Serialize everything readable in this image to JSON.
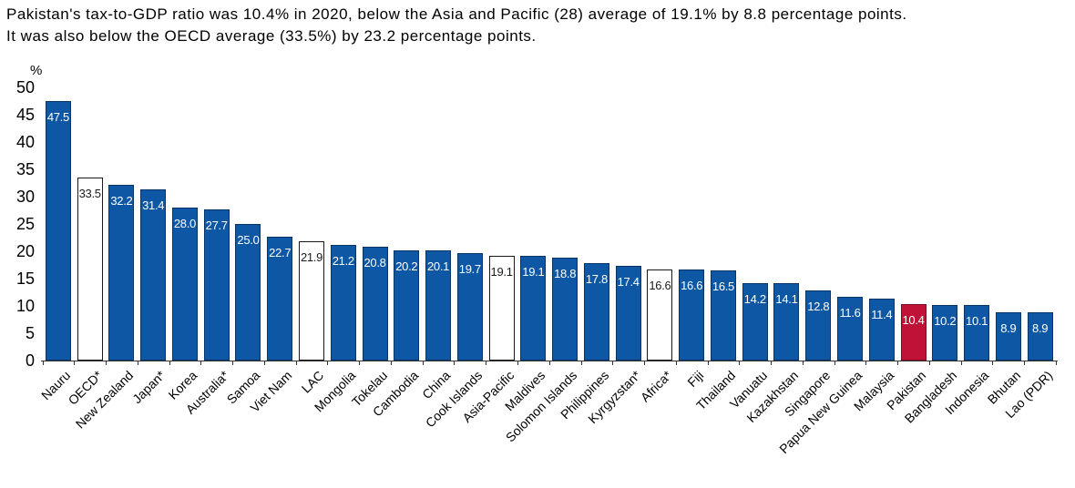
{
  "title": {
    "line1": "Pakistan's tax-to-GDP ratio was 10.4% in 2020, below the Asia and Pacific (28) average of 19.1% by 8.8 percentage points.",
    "line2": "It was also below the OECD average (33.5%) by 23.2 percentage points."
  },
  "chart_data": {
    "type": "bar",
    "ylabel": "%",
    "ylim": [
      0,
      50
    ],
    "yticks": [
      0,
      5,
      10,
      15,
      20,
      25,
      30,
      35,
      40,
      45,
      50
    ],
    "grid": false,
    "value_labels": "inside-top-one-decimal",
    "legend": "none",
    "categories": [
      "Nauru",
      "OECD*",
      "New Zealand",
      "Japan*",
      "Korea",
      "Australia*",
      "Samoa",
      "Viet Nam",
      "LAC",
      "Mongolia",
      "Tokelau",
      "Cambodia",
      "China",
      "Cook Islands",
      "Asia-Pacific",
      "Maldives",
      "Solomon Islands",
      "Philippines",
      "Kyrgyzstan*",
      "Africa*",
      "Fiji",
      "Thailand",
      "Vanuatu",
      "Kazakhstan",
      "Singapore",
      "Papua New Guinea",
      "Malaysia",
      "Pakistan",
      "Bangladesh",
      "Indonesia",
      "Bhutan",
      "Lao (PDR)"
    ],
    "values": [
      47.5,
      33.5,
      32.2,
      31.4,
      28.0,
      27.7,
      25.0,
      22.7,
      21.9,
      21.2,
      20.8,
      20.2,
      20.1,
      19.7,
      19.1,
      19.1,
      18.8,
      17.8,
      17.4,
      16.6,
      16.6,
      16.5,
      14.2,
      14.1,
      12.8,
      11.6,
      11.4,
      10.4,
      10.2,
      10.1,
      8.9,
      8.9
    ],
    "bar_styles": [
      "blue",
      "white",
      "blue",
      "blue",
      "blue",
      "blue",
      "blue",
      "blue",
      "white",
      "blue",
      "blue",
      "blue",
      "blue",
      "blue",
      "white",
      "blue",
      "blue",
      "blue",
      "blue",
      "white",
      "blue",
      "blue",
      "blue",
      "blue",
      "blue",
      "blue",
      "blue",
      "red",
      "blue",
      "blue",
      "blue",
      "blue"
    ],
    "colors": {
      "blue_fill": "#0E57A4",
      "blue_border": "#0A3464",
      "white_fill": "#FFFFFF",
      "white_border": "#1A1A1A",
      "red_fill": "#C01236",
      "red_border": "#7C0B26",
      "axis": "#333333",
      "label_on_dark": "#FFFFFF",
      "label_on_white": "#1A1A1A"
    }
  }
}
